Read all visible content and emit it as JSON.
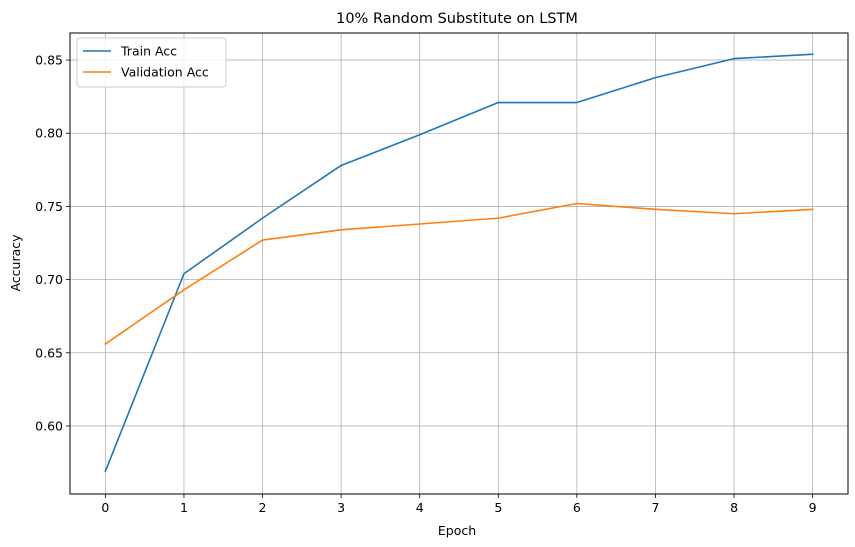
{
  "chart_data": {
    "type": "line",
    "title": "10% Random Substitute on LSTM",
    "xlabel": "Epoch",
    "ylabel": "Accuracy",
    "x": [
      0,
      1,
      2,
      3,
      4,
      5,
      6,
      7,
      8,
      9
    ],
    "xlim": [
      -0.45,
      9.45
    ],
    "ylim": [
      0.5535,
      0.8685
    ],
    "xticks": [
      "0",
      "1",
      "2",
      "3",
      "4",
      "5",
      "6",
      "7",
      "8",
      "9"
    ],
    "yticks": [
      "0.60",
      "0.65",
      "0.70",
      "0.75",
      "0.80",
      "0.85"
    ],
    "ytick_values": [
      0.6,
      0.65,
      0.7,
      0.75,
      0.8,
      0.85
    ],
    "grid": true,
    "legend_position": "upper-left",
    "series": [
      {
        "name": "Train Acc",
        "color": "#1f77b4",
        "values": [
          0.569,
          0.704,
          0.742,
          0.778,
          0.799,
          0.821,
          0.821,
          0.838,
          0.851,
          0.854
        ]
      },
      {
        "name": "Validation Acc",
        "color": "#ff7f0e",
        "values": [
          0.656,
          0.693,
          0.727,
          0.734,
          0.738,
          0.742,
          0.752,
          0.748,
          0.745,
          0.748
        ]
      }
    ]
  }
}
